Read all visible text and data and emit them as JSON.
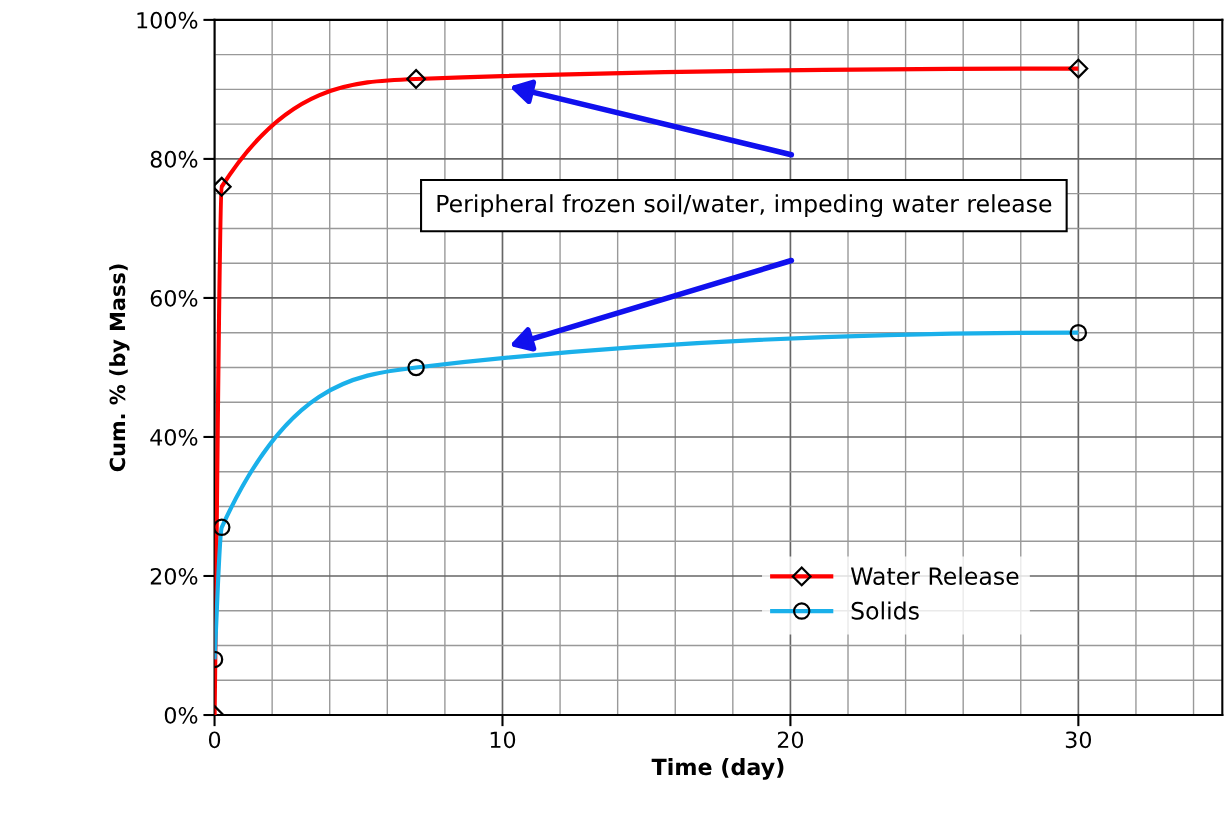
{
  "chart_data": {
    "type": "line",
    "xlabel": "Time (day)",
    "ylabel": "Cum. % (by Mass)",
    "xlim": [
      0,
      35
    ],
    "xticks": [
      0,
      10,
      20,
      30
    ],
    "ylim": [
      0,
      100
    ],
    "yticks": [
      {
        "value": 0,
        "label": "0%"
      },
      {
        "value": 20,
        "label": "20%"
      },
      {
        "value": 40,
        "label": "40%"
      },
      {
        "value": 60,
        "label": "60%"
      },
      {
        "value": 80,
        "label": "80%"
      },
      {
        "value": 100,
        "label": "100%"
      }
    ],
    "grid": true,
    "legend": "bottom right",
    "series": [
      {
        "name": "Water Release",
        "color": "#ff0000",
        "marker": "diamond",
        "x": [
          0,
          0.25,
          7,
          30
        ],
        "values": [
          0,
          76,
          91.5,
          93
        ]
      },
      {
        "name": "Solids",
        "color": "#1ab0ea",
        "marker": "circle",
        "x": [
          0,
          0.25,
          7,
          30
        ],
        "values": [
          8,
          27,
          50,
          55
        ]
      }
    ],
    "annotations": [
      "Peripheral frozen soil/water, impeding water release"
    ]
  }
}
